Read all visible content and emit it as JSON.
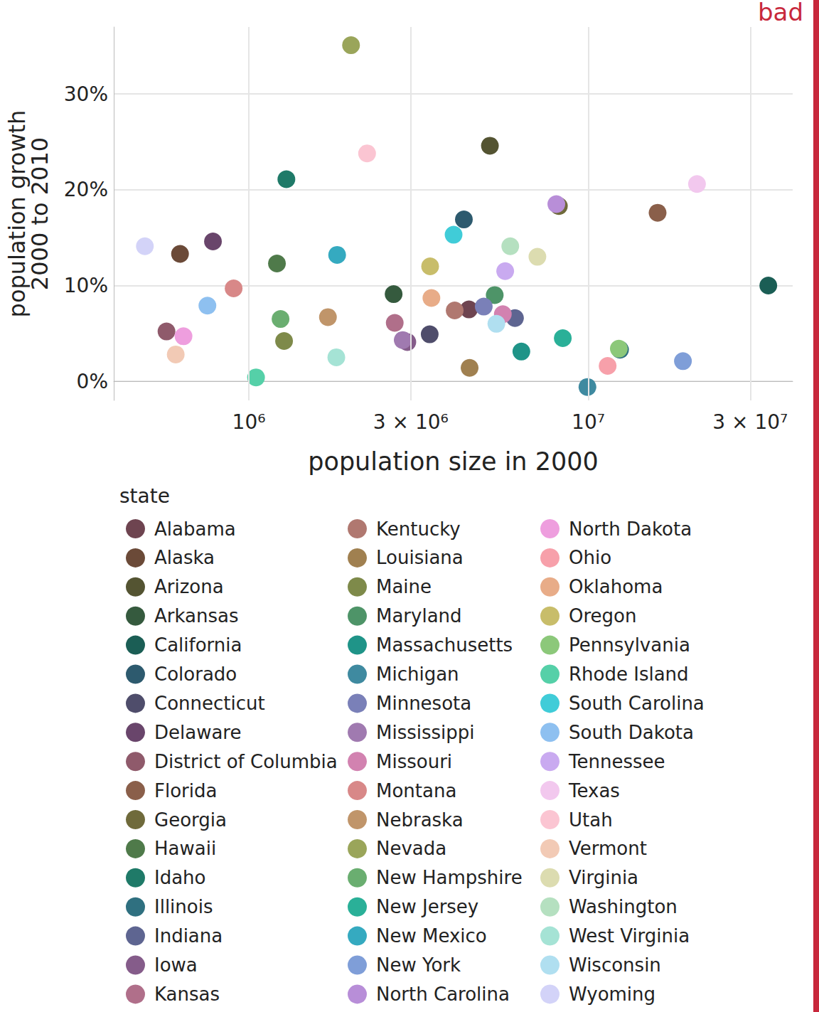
{
  "chart_data": {
    "type": "scatter",
    "annotation": "bad",
    "x_label": "population size in 2000",
    "y_label": "population growth\n2000 to 2010",
    "legend_title": "state",
    "log": "x",
    "grid": true,
    "legend": "bottom",
    "xlim": [
      400000,
      40000000
    ],
    "xticks": [
      {
        "value": 1000000,
        "label": "10⁶"
      },
      {
        "value": 3000000,
        "label": "3 × 10⁶"
      },
      {
        "value": 10000000,
        "label": "10⁷"
      },
      {
        "value": 30000000,
        "label": "3 × 10⁷"
      }
    ],
    "ylim": [
      -2,
      37
    ],
    "yticks": [
      {
        "value": 0,
        "label": "0%"
      },
      {
        "value": 10,
        "label": "10%"
      },
      {
        "value": 20,
        "label": "20%"
      },
      {
        "value": 30,
        "label": "30%"
      }
    ],
    "series": [
      {
        "name": "Alabama",
        "color": "#6e4450",
        "x": [
          4450000
        ],
        "values": [
          7.5
        ]
      },
      {
        "name": "Alaska",
        "color": "#6b4a38",
        "x": [
          627000
        ],
        "values": [
          13.3
        ]
      },
      {
        "name": "Arizona",
        "color": "#545432",
        "x": [
          5130000
        ],
        "values": [
          24.6
        ]
      },
      {
        "name": "Arkansas",
        "color": "#355a3e",
        "x": [
          2670000
        ],
        "values": [
          9.1
        ]
      },
      {
        "name": "California",
        "color": "#1b5e55",
        "x": [
          33900000
        ],
        "values": [
          10.0
        ]
      },
      {
        "name": "Colorado",
        "color": "#2d5a6e",
        "x": [
          4300000
        ],
        "values": [
          16.9
        ]
      },
      {
        "name": "Connecticut",
        "color": "#4f4d6b",
        "x": [
          3410000
        ],
        "values": [
          4.9
        ]
      },
      {
        "name": "Delaware",
        "color": "#69456b",
        "x": [
          784000
        ],
        "values": [
          14.6
        ]
      },
      {
        "name": "District of Columbia",
        "color": "#8f5a6b",
        "x": [
          572000
        ],
        "values": [
          5.2
        ]
      },
      {
        "name": "Florida",
        "color": "#8a5f4a",
        "x": [
          16000000
        ],
        "values": [
          17.6
        ]
      },
      {
        "name": "Georgia",
        "color": "#6f6a3b",
        "x": [
          8190000
        ],
        "values": [
          18.3
        ]
      },
      {
        "name": "Hawaii",
        "color": "#4f7a4a",
        "x": [
          1210000
        ],
        "values": [
          12.3
        ]
      },
      {
        "name": "Idaho",
        "color": "#1f7a68",
        "x": [
          1290000
        ],
        "values": [
          21.1
        ]
      },
      {
        "name": "Illinois",
        "color": "#2f7080",
        "x": [
          12400000
        ],
        "values": [
          3.3
        ]
      },
      {
        "name": "Indiana",
        "color": "#5e6591",
        "x": [
          6080000
        ],
        "values": [
          6.6
        ]
      },
      {
        "name": "Iowa",
        "color": "#855c8a",
        "x": [
          2930000
        ],
        "values": [
          4.1
        ]
      },
      {
        "name": "Kansas",
        "color": "#b06f8a",
        "x": [
          2690000
        ],
        "values": [
          6.1
        ]
      },
      {
        "name": "Kentucky",
        "color": "#b07870",
        "x": [
          4040000
        ],
        "values": [
          7.4
        ]
      },
      {
        "name": "Louisiana",
        "color": "#a08050",
        "x": [
          4470000
        ],
        "values": [
          1.4
        ]
      },
      {
        "name": "Maine",
        "color": "#7e8a4a",
        "x": [
          1270000
        ],
        "values": [
          4.2
        ]
      },
      {
        "name": "Maryland",
        "color": "#4e9468",
        "x": [
          5300000
        ],
        "values": [
          9.0
        ]
      },
      {
        "name": "Massachusetts",
        "color": "#1f9488",
        "x": [
          6350000
        ],
        "values": [
          3.1
        ]
      },
      {
        "name": "Michigan",
        "color": "#3f8aa0",
        "x": [
          9940000
        ],
        "values": [
          -0.6
        ]
      },
      {
        "name": "Minnesota",
        "color": "#7a80b8",
        "x": [
          4920000
        ],
        "values": [
          7.8
        ]
      },
      {
        "name": "Mississippi",
        "color": "#a07ab0",
        "x": [
          2840000
        ],
        "values": [
          4.3
        ]
      },
      {
        "name": "Missouri",
        "color": "#d282b0",
        "x": [
          5600000
        ],
        "values": [
          7.0
        ]
      },
      {
        "name": "Montana",
        "color": "#d88888",
        "x": [
          902000
        ],
        "values": [
          9.7
        ]
      },
      {
        "name": "Nebraska",
        "color": "#c0956a",
        "x": [
          1710000
        ],
        "values": [
          6.7
        ]
      },
      {
        "name": "Nevada",
        "color": "#9aa55a",
        "x": [
          2000000
        ],
        "values": [
          35.1
        ]
      },
      {
        "name": "New Hampshire",
        "color": "#6aae70",
        "x": [
          1240000
        ],
        "values": [
          6.5
        ]
      },
      {
        "name": "New Jersey",
        "color": "#2ab098",
        "x": [
          8410000
        ],
        "values": [
          4.5
        ]
      },
      {
        "name": "New Mexico",
        "color": "#35aac0",
        "x": [
          1820000
        ],
        "values": [
          13.2
        ]
      },
      {
        "name": "New York",
        "color": "#7f9ed8",
        "x": [
          19000000
        ],
        "values": [
          2.1
        ]
      },
      {
        "name": "North Carolina",
        "color": "#b88ed8",
        "x": [
          8050000
        ],
        "values": [
          18.5
        ]
      },
      {
        "name": "North Dakota",
        "color": "#ee9ede",
        "x": [
          642000
        ],
        "values": [
          4.7
        ]
      },
      {
        "name": "Ohio",
        "color": "#f7a0aa",
        "x": [
          11400000
        ],
        "values": [
          1.6
        ]
      },
      {
        "name": "Oklahoma",
        "color": "#e8ac88",
        "x": [
          3450000
        ],
        "values": [
          8.7
        ]
      },
      {
        "name": "Oregon",
        "color": "#c8bd6a",
        "x": [
          3420000
        ],
        "values": [
          12.0
        ]
      },
      {
        "name": "Pennsylvania",
        "color": "#8cc87a",
        "x": [
          12300000
        ],
        "values": [
          3.4
        ]
      },
      {
        "name": "Rhode Island",
        "color": "#55d0a8",
        "x": [
          1050000
        ],
        "values": [
          0.4
        ]
      },
      {
        "name": "South Carolina",
        "color": "#40ccd8",
        "x": [
          4010000
        ],
        "values": [
          15.3
        ]
      },
      {
        "name": "South Dakota",
        "color": "#8ec0f0",
        "x": [
          755000
        ],
        "values": [
          7.9
        ]
      },
      {
        "name": "Tennessee",
        "color": "#c9aaf0",
        "x": [
          5690000
        ],
        "values": [
          11.5
        ]
      },
      {
        "name": "Texas",
        "color": "#f2c8ee",
        "x": [
          20900000
        ],
        "values": [
          20.6
        ]
      },
      {
        "name": "Utah",
        "color": "#fbc5d2",
        "x": [
          2230000
        ],
        "values": [
          23.8
        ]
      },
      {
        "name": "Vermont",
        "color": "#f2cab5",
        "x": [
          609000
        ],
        "values": [
          2.8
        ]
      },
      {
        "name": "Virginia",
        "color": "#dcdcb0",
        "x": [
          7080000
        ],
        "values": [
          13.0
        ]
      },
      {
        "name": "Washington",
        "color": "#b5e0c0",
        "x": [
          5890000
        ],
        "values": [
          14.1
        ]
      },
      {
        "name": "West Virginia",
        "color": "#a5e3d5",
        "x": [
          1810000
        ],
        "values": [
          2.5
        ]
      },
      {
        "name": "Wisconsin",
        "color": "#b0dff0",
        "x": [
          5360000
        ],
        "values": [
          6.0
        ]
      },
      {
        "name": "Wyoming",
        "color": "#d3d3f8",
        "x": [
          494000
        ],
        "values": [
          14.1
        ]
      }
    ]
  }
}
